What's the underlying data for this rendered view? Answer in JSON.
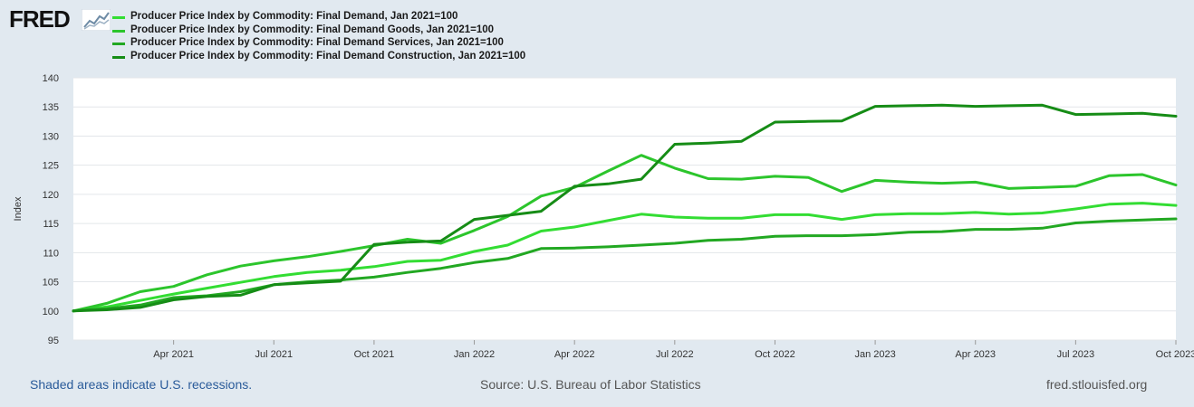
{
  "logo": {
    "text": "FRED"
  },
  "footer": {
    "recessions_note": "Shaded areas indicate U.S. recessions.",
    "source": "Source: U.S. Bureau of Labor Statistics",
    "site": "fred.stlouisfed.org"
  },
  "chart_data": {
    "type": "line",
    "title": "",
    "xlabel": "",
    "ylabel": "Index",
    "ylim": [
      95,
      140
    ],
    "yticks": [
      "95",
      "100",
      "105",
      "110",
      "115",
      "120",
      "125",
      "130",
      "135",
      "140"
    ],
    "xticks": [
      {
        "label": "Apr 2021",
        "x": 3
      },
      {
        "label": "Jul 2021",
        "x": 6
      },
      {
        "label": "Oct 2021",
        "x": 9
      },
      {
        "label": "Jan 2022",
        "x": 12
      },
      {
        "label": "Apr 2022",
        "x": 15
      },
      {
        "label": "Jul 2022",
        "x": 18
      },
      {
        "label": "Oct 2022",
        "x": 21
      },
      {
        "label": "Jan 2023",
        "x": 24
      },
      {
        "label": "Apr 2023",
        "x": 27
      },
      {
        "label": "Jul 2023",
        "x": 30
      },
      {
        "label": "Oct 2023",
        "x": 33
      }
    ],
    "x_range": [
      0,
      33
    ],
    "grid": true,
    "series": [
      {
        "name": "Producer Price Index by Commodity: Final Demand, Jan 2021=100",
        "color": "#33dd33",
        "values": [
          100,
          100.7,
          101.8,
          102.9,
          103.9,
          104.9,
          105.9,
          106.6,
          107.0,
          107.6,
          108.5,
          108.7,
          110.2,
          111.3,
          113.7,
          114.4,
          115.5,
          116.6,
          116.1,
          115.9,
          115.9,
          116.5,
          116.5,
          115.7,
          116.5,
          116.7,
          116.7,
          116.9,
          116.6,
          116.8,
          117.5,
          118.3,
          118.5,
          118.1
        ]
      },
      {
        "name": "Producer Price Index by Commodity: Final Demand Goods, Jan 2021=100",
        "color": "#2cc52c",
        "values": [
          100,
          101.3,
          103.3,
          104.2,
          106.2,
          107.7,
          108.6,
          109.3,
          110.2,
          111.2,
          112.3,
          111.6,
          113.8,
          116.2,
          119.7,
          121.2,
          124.0,
          126.7,
          124.5,
          122.7,
          122.6,
          123.1,
          122.9,
          120.5,
          122.4,
          122.1,
          121.9,
          122.1,
          121.0,
          121.2,
          121.4,
          123.2,
          123.4,
          121.6
        ]
      },
      {
        "name": "Producer Price Index by Commodity: Final Demand Services, Jan 2021=100",
        "color": "#22a822",
        "values": [
          100,
          100.4,
          101.0,
          102.3,
          102.6,
          103.3,
          104.5,
          105.0,
          105.3,
          105.8,
          106.6,
          107.3,
          108.3,
          109.0,
          110.7,
          110.8,
          111.0,
          111.3,
          111.6,
          112.1,
          112.3,
          112.8,
          112.9,
          112.9,
          113.1,
          113.5,
          113.6,
          114.0,
          114.0,
          114.2,
          115.1,
          115.4,
          115.6,
          115.8
        ]
      },
      {
        "name": "Producer Price Index by Commodity: Final Demand Construction, Jan 2021=100",
        "color": "#168c16",
        "values": [
          100,
          100.2,
          100.6,
          101.9,
          102.5,
          102.7,
          104.5,
          104.8,
          105.1,
          111.4,
          111.8,
          112.0,
          115.7,
          116.4,
          117.1,
          121.4,
          121.8,
          122.6,
          128.6,
          128.8,
          129.1,
          132.4,
          132.5,
          132.6,
          135.1,
          135.2,
          135.3,
          135.1,
          135.2,
          135.3,
          133.7,
          133.8,
          133.9,
          133.4
        ]
      }
    ]
  }
}
